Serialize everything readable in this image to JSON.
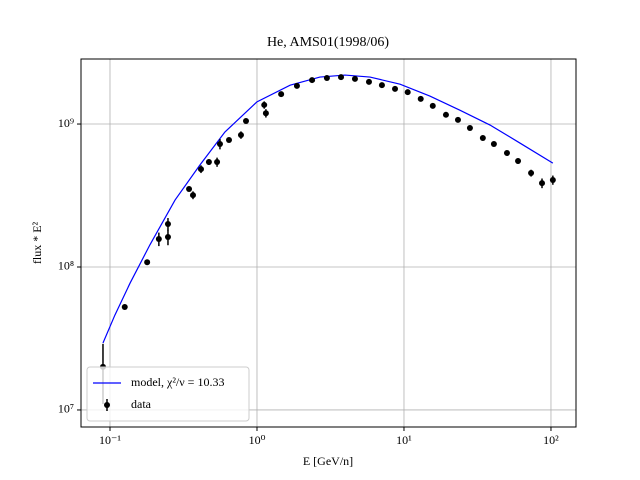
{
  "chart_data": {
    "type": "scatter",
    "title": "He, AMS01(1998/06)",
    "x_label": "E [GeV/n]",
    "y_label": "flux * E²",
    "log_x": true,
    "log_y": true,
    "grid": true,
    "legend": "lower left",
    "xlim": [
      0.0635,
      148
    ],
    "ylim": [
      7600000,
      2850000000
    ],
    "xticks": [
      {
        "value": 0.1,
        "label": "10⁻¹"
      },
      {
        "value": 1,
        "label": "10⁰"
      },
      {
        "value": 10,
        "label": "10¹"
      },
      {
        "value": 100,
        "label": "10²"
      }
    ],
    "yticks": [
      {
        "value": 10000000,
        "label": "10⁷"
      },
      {
        "value": 100000000,
        "label": "10⁸"
      },
      {
        "value": 1000000000,
        "label": "10⁹"
      }
    ],
    "series": [
      {
        "name": "model, χ²/ν = 10.33",
        "color": "#0000ff",
        "type": "line",
        "x": [
          0.0896,
          0.108,
          0.137,
          0.187,
          0.277,
          0.409,
          0.605,
          1,
          1.68,
          2.68,
          3.97,
          5.87,
          9.4,
          15.0,
          24.0,
          38.5,
          61.5,
          103
        ],
        "values": [
          29400000,
          46100000,
          77200000,
          143000000,
          294000000,
          517000000,
          879000000,
          1430000000,
          1870000000,
          2130000000,
          2200000000,
          2130000000,
          1900000000,
          1570000000,
          1250000000,
          984000000,
          736000000,
          533000000
        ]
      },
      {
        "name": "data",
        "color": "#000000",
        "type": "errorbar",
        "x": [
          0.0896,
          0.126,
          0.179,
          0.215,
          0.248,
          0.248,
          0.345,
          0.367,
          0.416,
          0.471,
          0.535,
          0.56,
          0.645,
          0.778,
          0.842,
          1.12,
          1.15,
          1.46,
          1.87,
          2.37,
          2.99,
          3.73,
          4.64,
          5.78,
          7.08,
          8.69,
          10.6,
          13.0,
          15.7,
          19.3,
          23.3,
          28.1,
          34.4,
          40.9,
          50.2,
          59.7,
          73.2,
          86.9,
          103
        ],
        "values": [
          20000000,
          52500000,
          108000000,
          157000000,
          200000000,
          162000000,
          351000000,
          318000000,
          484000000,
          542000000,
          542000000,
          725000000,
          773000000,
          838000000,
          1050000000,
          1360000000,
          1190000000,
          1620000000,
          1850000000,
          2030000000,
          2100000000,
          2130000000,
          2070000000,
          1970000000,
          1870000000,
          1760000000,
          1670000000,
          1500000000,
          1340000000,
          1160000000,
          1070000000,
          938000000,
          798000000,
          725000000,
          627000000,
          551000000,
          454000000,
          386000000,
          406000000
        ],
        "errors": [
          9000000,
          2000000,
          4000000,
          17000000,
          20000000,
          20000000,
          12000000,
          20000000,
          30000000,
          25000000,
          40000000,
          60000000,
          30000000,
          50000000,
          40000000,
          80000000,
          80000000,
          50000000,
          50000000,
          50000000,
          50000000,
          60000000,
          50000000,
          50000000,
          50000000,
          45000000,
          45000000,
          40000000,
          40000000,
          35000000,
          30000000,
          30000000,
          25000000,
          25000000,
          25000000,
          25000000,
          25000000,
          30000000,
          30000000
        ]
      }
    ]
  }
}
